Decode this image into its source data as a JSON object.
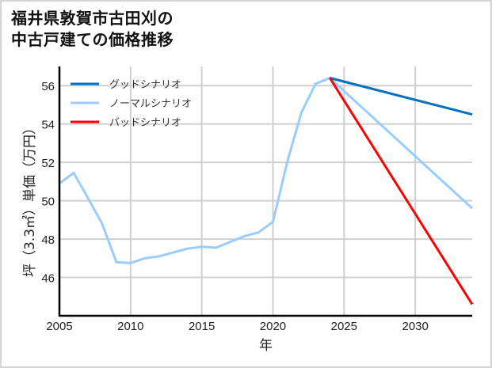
{
  "title_line1": "福井県敦賀市古田刈の",
  "title_line2": "中古戸建ての価格推移",
  "chart_data": {
    "type": "line",
    "title": "福井県敦賀市古田刈の中古戸建ての価格推移",
    "xlabel": "年",
    "ylabel": "坪（3.3㎡）単価（万円）",
    "xlim": [
      2005,
      2034
    ],
    "ylim": [
      44.0,
      57.0
    ],
    "xticks": [
      2005,
      2010,
      2015,
      2020,
      2025,
      2030
    ],
    "yticks": [
      46,
      48,
      50,
      52,
      54,
      56
    ],
    "grid": true,
    "legend_position": "upper left",
    "series": [
      {
        "name": "グッドシナリオ",
        "color": "#0070c0",
        "x": [
          2024,
          2034
        ],
        "values": [
          56.4,
          54.5
        ]
      },
      {
        "name": "ノーマルシナリオ",
        "color": "#99ccff",
        "x": [
          2005,
          2006,
          2007,
          2008,
          2009,
          2010,
          2011,
          2012,
          2013,
          2014,
          2015,
          2016,
          2017,
          2018,
          2019,
          2020,
          2021,
          2022,
          2023,
          2024,
          2034
        ],
        "values": [
          50.9,
          51.45,
          50.15,
          48.8,
          46.8,
          46.75,
          47.0,
          47.1,
          47.3,
          47.5,
          47.6,
          47.55,
          47.85,
          48.15,
          48.35,
          48.9,
          52.0,
          54.6,
          56.1,
          56.4,
          49.6
        ]
      },
      {
        "name": "バッドシナリオ",
        "color": "#ff0000",
        "x": [
          2024,
          2034
        ],
        "values": [
          56.4,
          44.6
        ]
      }
    ]
  }
}
